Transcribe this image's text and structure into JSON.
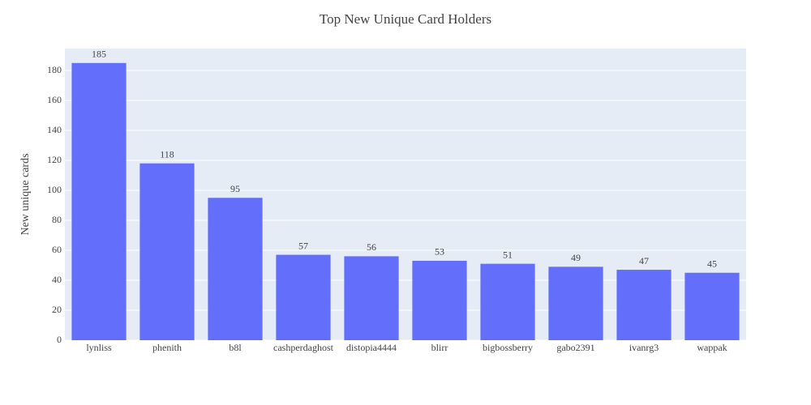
{
  "chart_data": {
    "type": "bar",
    "title": "Top New Unique Card Holders",
    "y_label": "New unique cards",
    "categories": [
      "lynliss",
      "phenith",
      "b8l",
      "cashperdaghost",
      "distopia4444",
      "blirr",
      "bigbossberry",
      "gabo2391",
      "ivanrg3",
      "wappak"
    ],
    "values": [
      185,
      118,
      95,
      57,
      56,
      53,
      51,
      49,
      47,
      45
    ],
    "color": "#636efa",
    "ylim": [
      0,
      194.6
    ],
    "yticks": [
      0,
      20,
      40,
      60,
      80,
      100,
      120,
      140,
      160,
      180
    ],
    "grid": true
  }
}
